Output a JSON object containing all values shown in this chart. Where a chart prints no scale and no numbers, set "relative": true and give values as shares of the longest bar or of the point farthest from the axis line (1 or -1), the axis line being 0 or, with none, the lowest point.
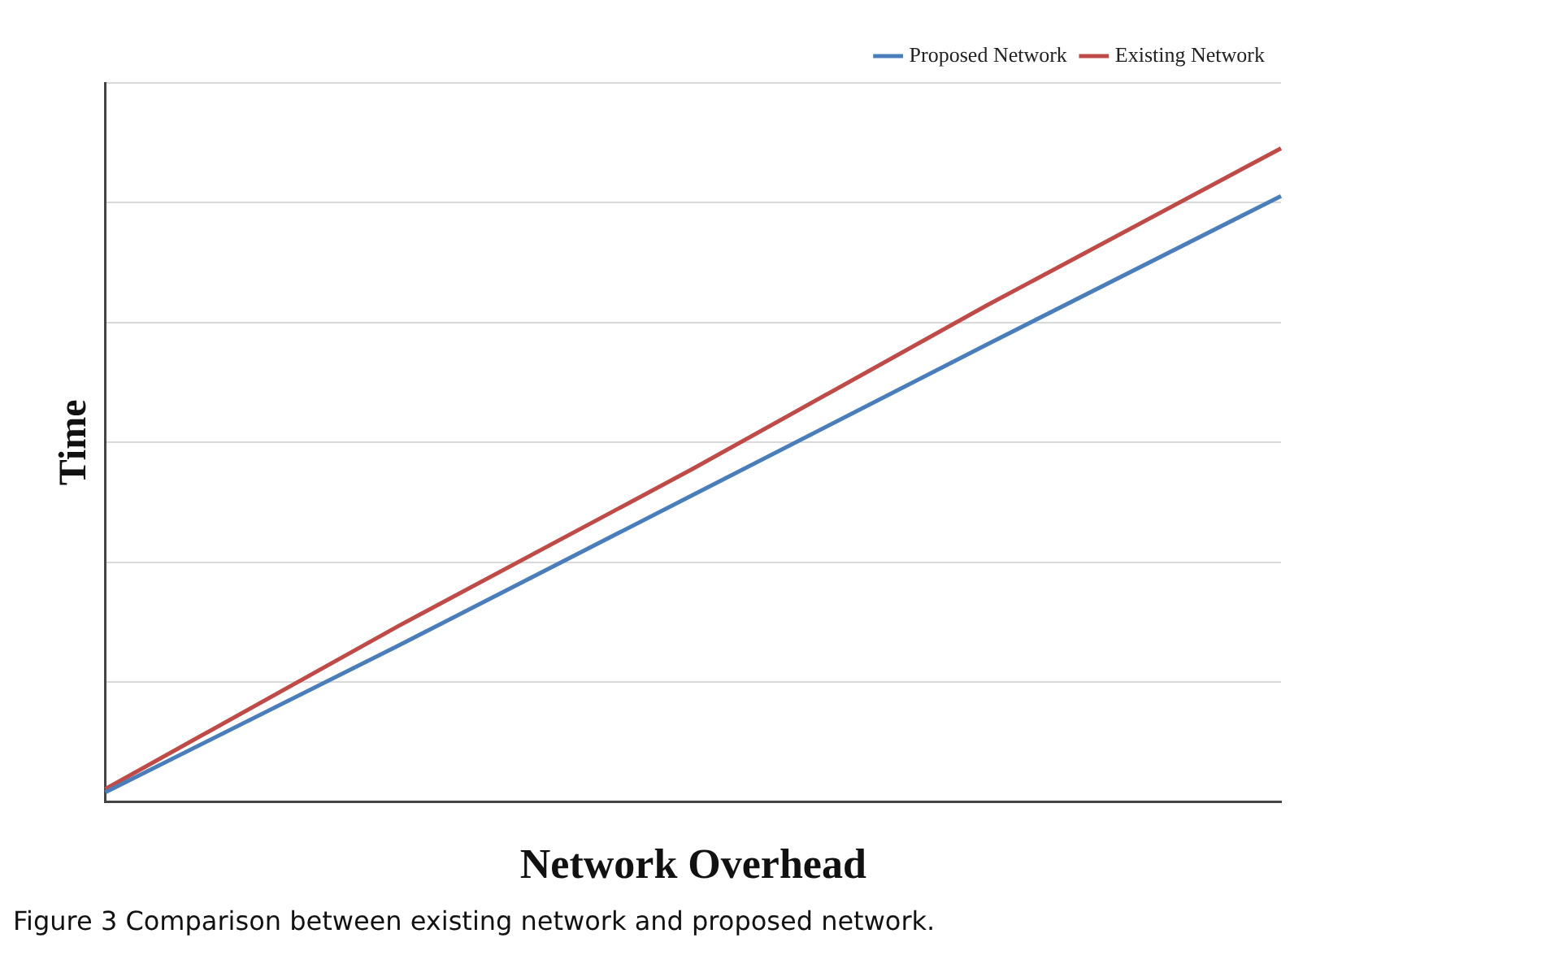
{
  "chart_data": {
    "type": "line",
    "relative": true,
    "xlabel": "Network Overhead",
    "ylabel": "Time",
    "categories": [
      null,
      null,
      null,
      null,
      null
    ],
    "series": [
      {
        "name": "Proposed Network",
        "color": "#4a7ebb",
        "values": [
          0.015,
          0.24,
          0.47,
          0.7,
          0.927
        ]
      },
      {
        "name": "Existing Network",
        "color": "#be4b48",
        "values": [
          0.02,
          0.27,
          0.51,
          0.76,
          1
        ]
      }
    ],
    "grid": "y",
    "legend": "top right",
    "marker": "none",
    "line_style": "solid",
    "annotations": [
      "Figure 3  Comparison between existing network and proposed network."
    ]
  }
}
